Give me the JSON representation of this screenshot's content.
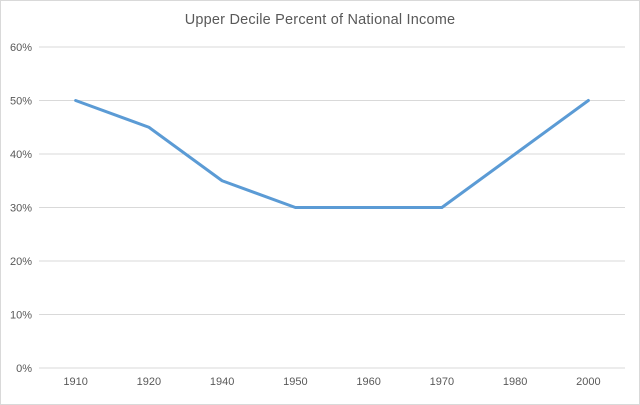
{
  "chart": {
    "title": "Upper Decile Percent of National Income"
  },
  "chart_data": {
    "type": "line",
    "title": "Upper Decile Percent of National Income",
    "categories": [
      "1910",
      "1920",
      "1940",
      "1950",
      "1960",
      "1970",
      "1980",
      "2000"
    ],
    "values": [
      50,
      45,
      35,
      30,
      30,
      30,
      40,
      50
    ],
    "xlabel": "",
    "ylabel": "",
    "ylim": [
      0,
      60
    ],
    "yticks": [
      0,
      10,
      20,
      30,
      40,
      50,
      60
    ],
    "ytick_labels": [
      "0%",
      "10%",
      "20%",
      "30%",
      "40%",
      "50%",
      "60%"
    ],
    "grid": "horizontal",
    "legend": "none",
    "markers": "none",
    "line_color": "#5B9BD5",
    "gridline_color": "#D9D9D9",
    "text_color": "#595959",
    "background": "#FFFFFF"
  }
}
